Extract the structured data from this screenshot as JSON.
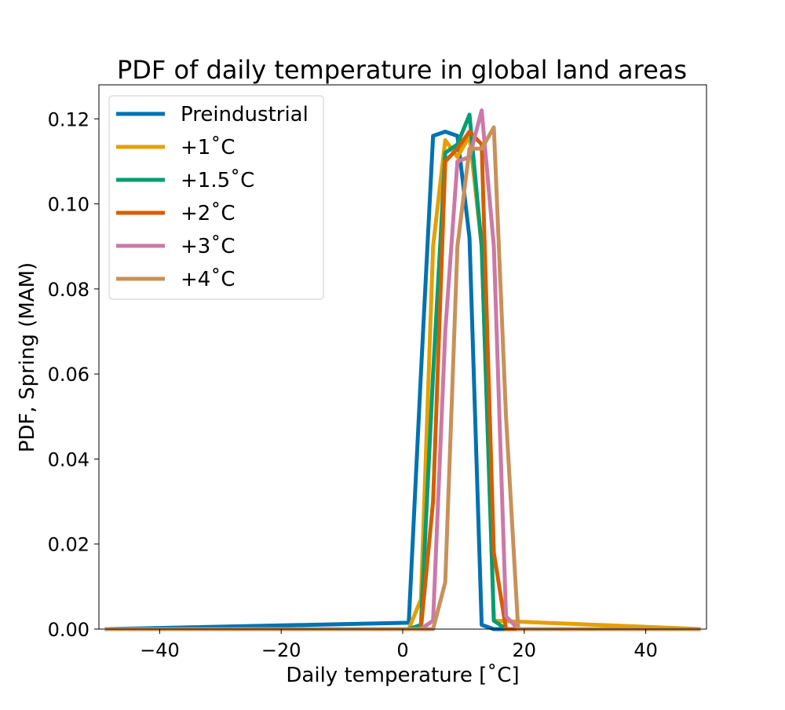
{
  "chart_data": {
    "type": "line",
    "title": "PDF of daily temperature in global land areas",
    "xlabel": "Daily temperature [˚C]",
    "ylabel": "PDF, Spring (MAM)",
    "xlim": [
      -50,
      50
    ],
    "ylim": [
      0,
      0.128
    ],
    "xticks": [
      -40,
      -20,
      0,
      20,
      40
    ],
    "xtick_labels": [
      "−40",
      "−20",
      "0",
      "20",
      "40"
    ],
    "yticks": [
      0.0,
      0.02,
      0.04,
      0.06,
      0.08,
      0.1,
      0.12
    ],
    "ytick_labels": [
      "0.00",
      "0.02",
      "0.04",
      "0.06",
      "0.08",
      "0.10",
      "0.12"
    ],
    "grid": false,
    "legend_position": "upper-left",
    "series": [
      {
        "name": "Preindustrial",
        "color": "#0072b2",
        "x": [
          -49,
          1,
          3,
          5,
          7,
          9,
          11,
          13,
          15,
          49
        ],
        "y": [
          0,
          0.0015,
          0.06,
          0.116,
          0.117,
          0.116,
          0.092,
          0.001,
          0,
          0
        ]
      },
      {
        "name": "+1˚C",
        "color": "#e69f00",
        "x": [
          -49,
          1,
          3,
          5,
          7,
          9,
          11,
          13,
          15,
          49
        ],
        "y": [
          0,
          0,
          0.007,
          0.09,
          0.115,
          0.111,
          0.116,
          0.09,
          0.002,
          0
        ]
      },
      {
        "name": "+1.5˚C",
        "color": "#009e73",
        "x": [
          -49,
          1,
          3,
          5,
          7,
          9,
          11,
          13,
          15,
          17,
          49
        ],
        "y": [
          0,
          0,
          0.001,
          0.06,
          0.112,
          0.114,
          0.121,
          0.09,
          0.002,
          0,
          0
        ]
      },
      {
        "name": "+2˚C",
        "color": "#d55e00",
        "x": [
          -49,
          1,
          3,
          5,
          7,
          9,
          11,
          13,
          15,
          17,
          49
        ],
        "y": [
          0,
          0,
          0,
          0.03,
          0.11,
          0.113,
          0.117,
          0.114,
          0.018,
          0,
          0
        ]
      },
      {
        "name": "+3˚C",
        "color": "#cc79a7",
        "x": [
          -49,
          1,
          3,
          5,
          7,
          9,
          11,
          13,
          15,
          17,
          19,
          49
        ],
        "y": [
          0,
          0,
          0,
          0.002,
          0.07,
          0.11,
          0.111,
          0.122,
          0.09,
          0.003,
          0,
          0
        ]
      },
      {
        "name": "+4˚C",
        "color": "#c8915a",
        "x": [
          -49,
          3,
          5,
          7,
          9,
          11,
          13,
          15,
          17,
          19,
          49
        ],
        "y": [
          0,
          0,
          0,
          0.011,
          0.09,
          0.113,
          0.113,
          0.118,
          0.05,
          0,
          0
        ]
      }
    ]
  }
}
